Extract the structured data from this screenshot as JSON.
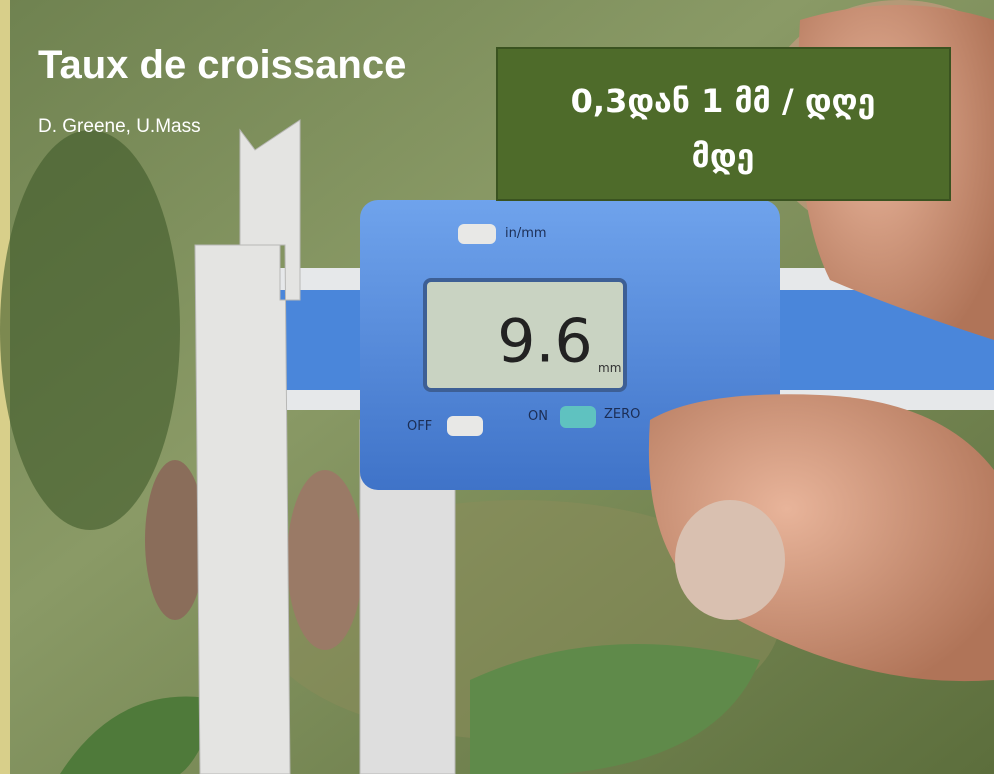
{
  "header": {
    "title": "Taux de croissance",
    "subtitle": "D. Greene, U.Mass"
  },
  "callout": {
    "lines": [
      "0,3დან 1 მმ / დღე",
      "მდე"
    ]
  },
  "caliper": {
    "mode_button": "in/mm",
    "reading": "9.6",
    "unit": "mm",
    "off": "OFF",
    "on": "ON",
    "zero": "ZERO"
  }
}
